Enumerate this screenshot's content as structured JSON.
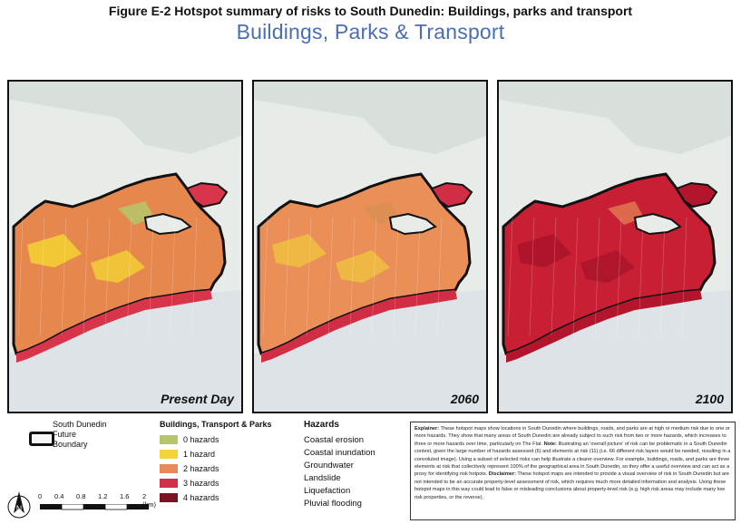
{
  "figure": {
    "title": "Figure E-2 Hotspot summary of risks to South Dunedin: Buildings, parks and transport",
    "subtitle": "Buildings, Parks & Transport"
  },
  "maps": [
    {
      "label": "Present Day",
      "base_color": "#e6874e",
      "secondary_color": "#f2d233",
      "tertiary_color": "#b8c36c",
      "coast_color": "#d8354a"
    },
    {
      "label": "2060",
      "base_color": "#ea8f58",
      "secondary_color": "#f0c040",
      "tertiary_color": "#d98f53",
      "coast_color": "#d12e45"
    },
    {
      "label": "2100",
      "base_color": "#c81f35",
      "secondary_color": "#a9142a",
      "tertiary_color": "#e0704f",
      "coast_color": "#b3162c"
    }
  ],
  "legend": {
    "boundary_label_line1": "South Dunedin",
    "boundary_label_line2": "Future",
    "boundary_label_line3": "Boundary",
    "category_title": "Buildings, Transport & Parks",
    "categories": [
      {
        "label": "0 hazards",
        "color": "#b9c46c"
      },
      {
        "label": "1 hazard",
        "color": "#f3d43a"
      },
      {
        "label": "2 hazards",
        "color": "#e8895a"
      },
      {
        "label": "3 hazards",
        "color": "#d0304a"
      },
      {
        "label": "4 hazards",
        "color": "#7a1322"
      }
    ],
    "hazards_title": "Hazards",
    "hazards": [
      "Coastal erosion",
      "Coastal inundation",
      "Groundwater",
      "Landslide",
      "Liquefaction",
      "Pluvial flooding"
    ]
  },
  "scale": {
    "ticks": [
      "0",
      "0.4",
      "0.8",
      "1.2",
      "1.6",
      "2 (km)"
    ]
  },
  "north_arrow": {
    "letter": "N",
    "icon": "north-arrow-icon"
  },
  "explainer": {
    "explainer_label": "Explainer:",
    "explainer_text": " These hotspot maps show locations in South Dunedin where buildings, roads, and parks are at high or medium risk due to one or more hazards. They show that many areas of South Dunedin are already subject to such risk from two or more hazards, which increases to three or more hazards over time, particularly on The Flat. ",
    "note_label": "Note:",
    "note_text": " Illustrating an 'overall picture' of risk can be problematic in a South Dunedin context, given the large number of hazards assessed (6) and elements at risk (11) (i.e. 66 different risk layers would be needed, resulting in a convoluted image). Using a subset of selected risks can help illustrate a clearer overview. For example, buildings, roads, and parks are three elements at risk that collectively represent 100% of the geographical area in South Dunedin, so they offer a useful overview and can act as a proxy for identifying risk hotpots. ",
    "disclaimer_label": "Disclaimer:",
    "disclaimer_text": " These hotspot maps are intended to provide a visual overview of risk in South Dunedin but are not intended to be an accurate property-level assessment of risk, which requires much more detailed information and analysis. Using these hotspot maps in this way could lead to false or misleading conclusions about property-level risk (e.g. high risk areas may include many low risk properties, or the reverse)."
  }
}
